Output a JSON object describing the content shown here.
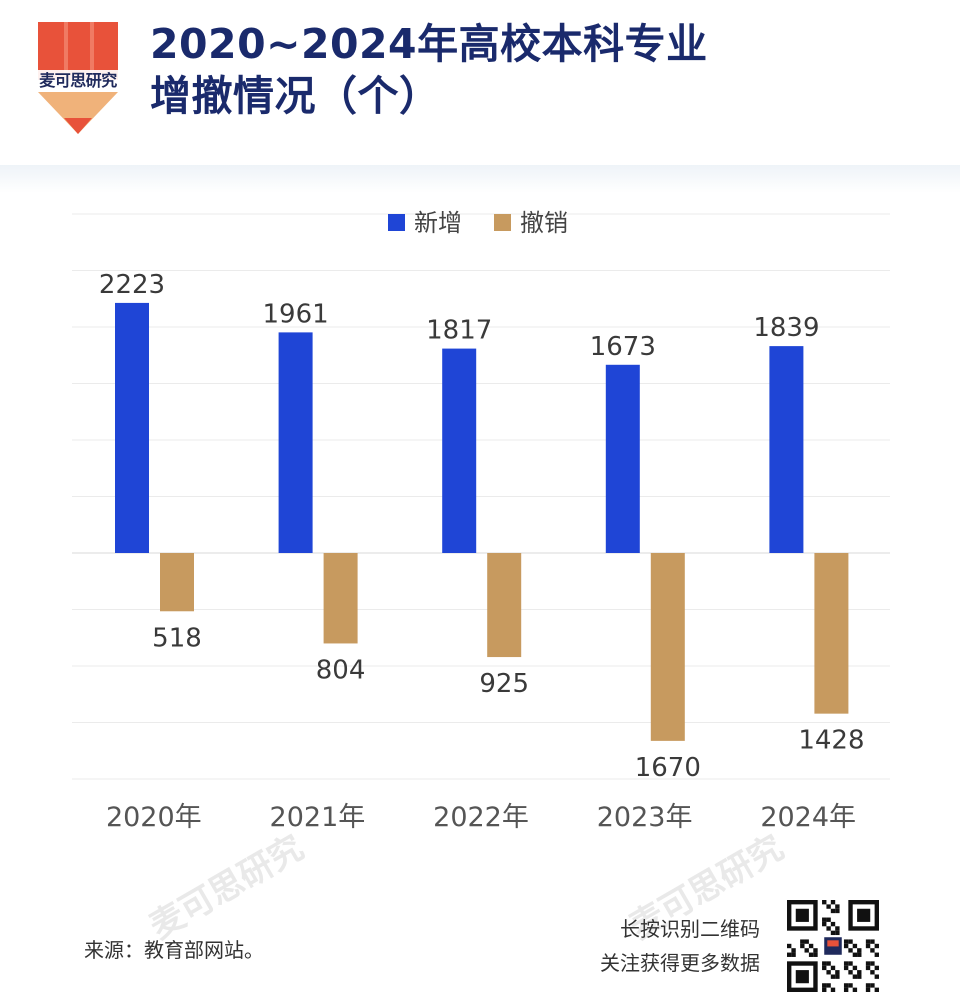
{
  "header": {
    "brand": "麦可思研究",
    "title_line1": "2020~2024年高校本科专业",
    "title_line2": "增撤情况（个）"
  },
  "chart_data": {
    "type": "bar",
    "categories": [
      "2020年",
      "2021年",
      "2022年",
      "2023年",
      "2024年"
    ],
    "series": [
      {
        "name": "新增",
        "values": [
          2223,
          1961,
          1817,
          1673,
          1839
        ],
        "color": "#1f45d6",
        "direction": "up"
      },
      {
        "name": "撤销",
        "values": [
          518,
          804,
          925,
          1670,
          1428
        ],
        "color": "#c79a5f",
        "direction": "down"
      }
    ],
    "title": "",
    "xlabel": "",
    "ylabel": "",
    "ylim": [
      -2000,
      2500
    ],
    "grid": true,
    "legend": "top-center"
  },
  "footer": {
    "source": "来源：教育部网站。",
    "qr_line1": "长按识别二维码",
    "qr_line2": "关注获得更多数据"
  },
  "watermark": "麦可思研究"
}
